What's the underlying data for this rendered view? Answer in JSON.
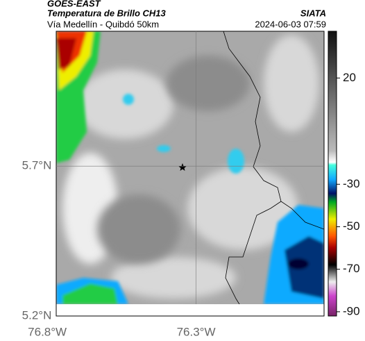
{
  "header": {
    "source": "GOES-EAST",
    "product": "Temperatura de Brillo CH13",
    "org": "SIATA",
    "route": "Vía Medellín - Quibdó 50km",
    "datetime": "2024-06-03 07:59"
  },
  "map": {
    "xlim": [
      -76.77,
      -75.87
    ],
    "ylim": [
      5.2,
      6.15
    ],
    "xticks": [
      {
        "value": -76.8,
        "label": "76.8°W"
      },
      {
        "value": -76.3,
        "label": "76.3°W"
      }
    ],
    "yticks": [
      {
        "value": 5.7,
        "label": "5.7°N"
      },
      {
        "value": 5.2,
        "label": "5.2°N"
      }
    ]
  },
  "colorbar": {
    "lim": [
      -92,
      42
    ],
    "ticks": [
      20,
      -30,
      -50,
      -70,
      -90
    ]
  }
}
